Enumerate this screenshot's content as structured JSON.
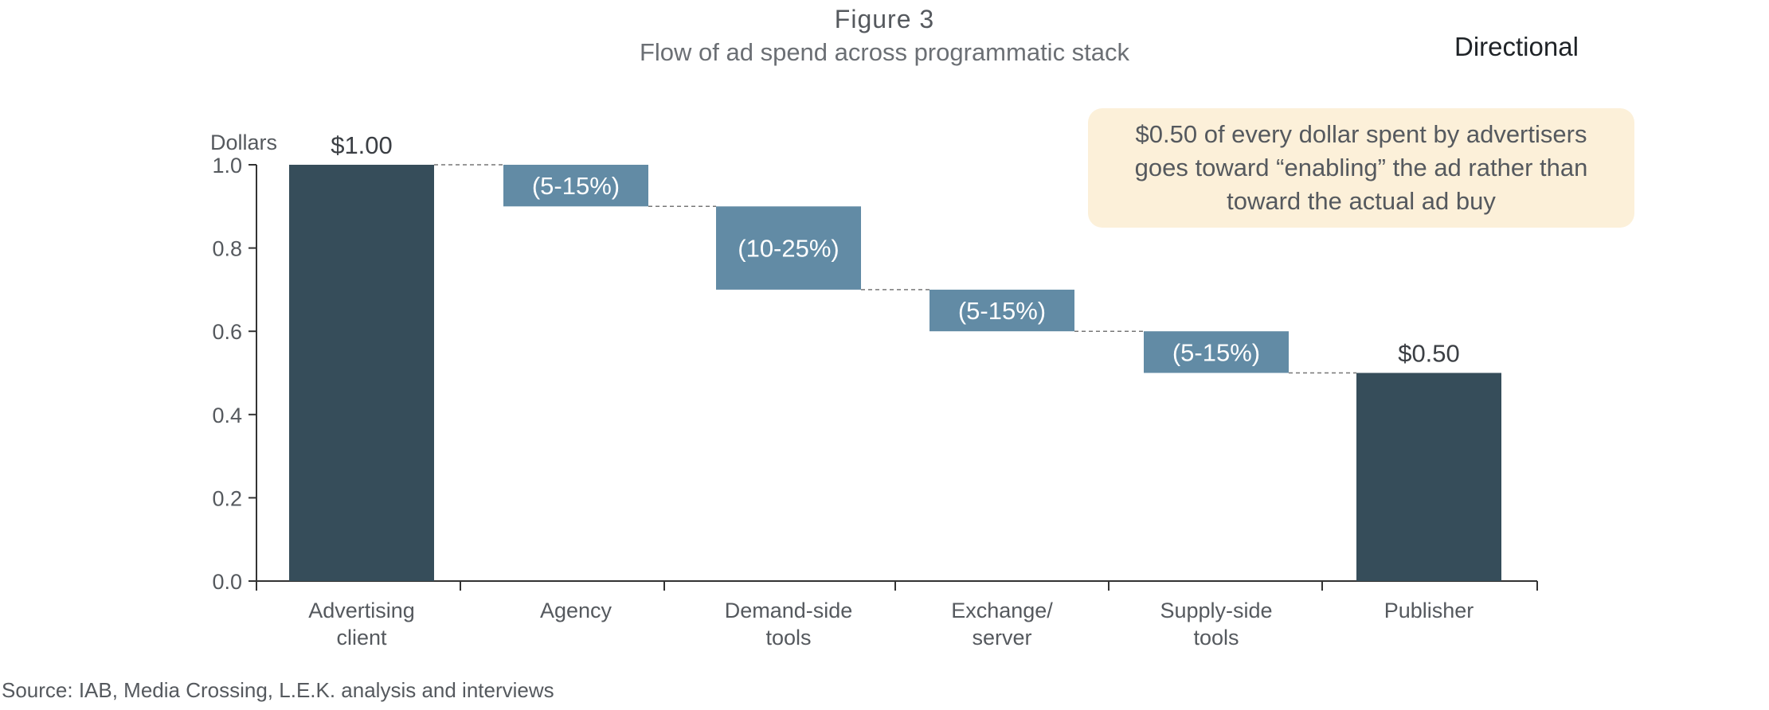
{
  "header": {
    "figure_label": "Figure 3",
    "subtitle": "Flow of ad spend across programmatic stack",
    "tag": "Directional"
  },
  "callout": {
    "text": "$0.50 of every dollar spent by advertisers goes toward “enabling” the ad rather than toward the actual ad buy"
  },
  "footer": {
    "source": "Source: IAB, Media Crossing, L.E.K. analysis and interviews"
  },
  "colors": {
    "total_bar": "#364d5a",
    "step_bar": "#628ba5",
    "axis": "#333333",
    "connector": "#777777",
    "callout_bg": "#fcf0d9"
  },
  "chart_data": {
    "type": "bar",
    "subtype": "waterfall",
    "ylabel": "Dollars",
    "ylim": [
      0,
      1.0
    ],
    "yticks": [
      "0.0",
      "0.2",
      "0.4",
      "0.6",
      "0.8",
      "1.0"
    ],
    "categories": [
      [
        "Advertising",
        "client"
      ],
      [
        "Agency"
      ],
      [
        "Demand-side",
        "tools"
      ],
      [
        "Exchange/",
        "server"
      ],
      [
        "Supply-side",
        "tools"
      ],
      [
        "Publisher"
      ]
    ],
    "bars": [
      {
        "kind": "total",
        "bottom": 0.0,
        "top": 1.0,
        "label": "$1.00"
      },
      {
        "kind": "step",
        "bottom": 0.9,
        "top": 1.0,
        "label": "(5-15%)"
      },
      {
        "kind": "step",
        "bottom": 0.7,
        "top": 0.9,
        "label": "(10-25%)"
      },
      {
        "kind": "step",
        "bottom": 0.6,
        "top": 0.7,
        "label": "(5-15%)"
      },
      {
        "kind": "step",
        "bottom": 0.5,
        "top": 0.6,
        "label": "(5-15%)"
      },
      {
        "kind": "total",
        "bottom": 0.0,
        "top": 0.5,
        "label": "$0.50"
      }
    ],
    "grid": false,
    "legend": "none"
  }
}
